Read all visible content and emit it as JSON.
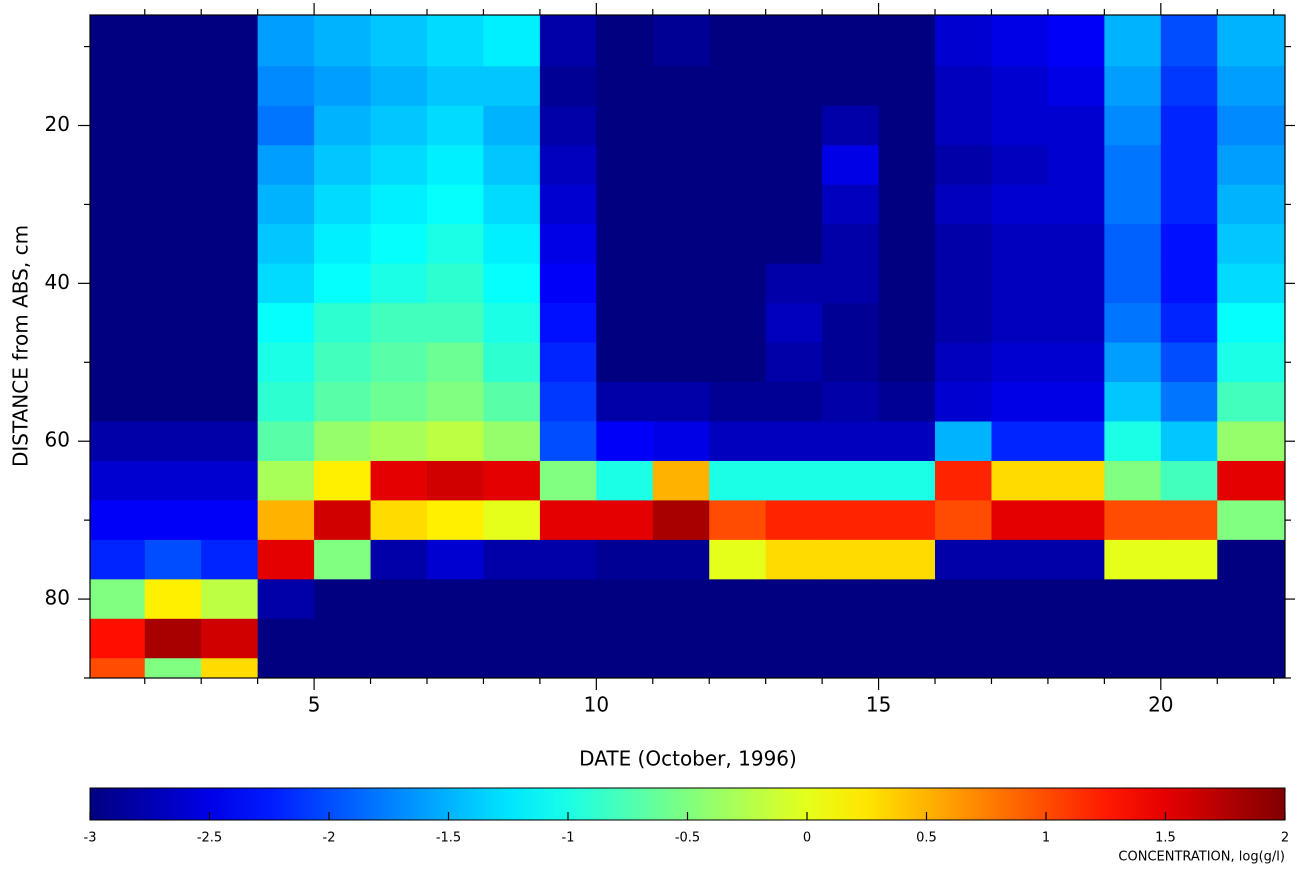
{
  "chart_data": {
    "type": "heatmap",
    "xlabel": "DATE (October, 1996)",
    "ylabel": "DISTANCE from ABS, cm",
    "colorbar_label": "CONCENTRATION, log(g/l)",
    "colormap": "jet",
    "xlim": [
      1.03,
      22.2
    ],
    "ylim": [
      6,
      90
    ],
    "y_inverted": true,
    "xticks": [
      5,
      10,
      15,
      20
    ],
    "x_minor_ticks": [
      2,
      3,
      4,
      6,
      7,
      8,
      9,
      11,
      12,
      13,
      14,
      16,
      17,
      18,
      19,
      21,
      22
    ],
    "yticks": [
      20,
      40,
      60,
      80
    ],
    "y_minor_ticks": [
      10,
      30,
      50,
      70,
      90
    ],
    "clim": [
      -3,
      2
    ],
    "cticks": [
      -3,
      -2.5,
      -2,
      -1.5,
      -1,
      -0.5,
      0,
      0.5,
      1,
      1.5,
      2
    ],
    "x": [
      1.5,
      2.5,
      3.5,
      4.5,
      5.5,
      6.5,
      7.5,
      8.5,
      9.5,
      10.5,
      11.5,
      12.5,
      13.5,
      14.5,
      15.5,
      16.5,
      17.5,
      18.5,
      19.5,
      20.5,
      21.5
    ],
    "y": [
      10,
      15,
      20,
      25,
      30,
      35,
      40,
      45,
      50,
      55,
      60,
      65,
      70,
      75,
      80,
      85,
      90
    ],
    "z": [
      [
        -3,
        -3,
        -3,
        -3,
        -3,
        -3,
        -3,
        -3,
        -3,
        -3,
        -2.8,
        -2.6,
        -2.4,
        -2.2,
        -0.5,
        1.3,
        1.0
      ],
      [
        -3,
        -3,
        -3,
        -3,
        -3,
        -3,
        -3,
        -3,
        -3,
        -3,
        -2.8,
        -2.6,
        -2.4,
        -2,
        0.2,
        1.8,
        -0.5
      ],
      [
        -3,
        -3,
        -3,
        -3,
        -3,
        -3,
        -3,
        -3,
        -3,
        -3,
        -2.8,
        -2.6,
        -2.4,
        -2.2,
        -0.2,
        1.6,
        0.3
      ],
      [
        -1.6,
        -1.7,
        -1.8,
        -1.6,
        -1.5,
        -1.4,
        -1.3,
        -1.1,
        -1,
        -0.9,
        -0.7,
        -0.3,
        0.5,
        1.5,
        -2.8,
        -3,
        -3
      ],
      [
        -1.5,
        -1.6,
        -1.5,
        -1.4,
        -1.3,
        -1.2,
        -1.1,
        -0.9,
        -0.8,
        -0.7,
        -0.4,
        0.2,
        1.6,
        -0.5,
        -3,
        -3,
        -3
      ],
      [
        -1.4,
        -1.5,
        -1.4,
        -1.3,
        -1.2,
        -1.1,
        -1,
        -0.8,
        -0.7,
        -0.6,
        -0.3,
        1.5,
        0.3,
        -2.8,
        -3,
        -3,
        -3
      ],
      [
        -1.3,
        -1.4,
        -1.3,
        -1.2,
        -1.1,
        -1,
        -0.9,
        -0.8,
        -0.6,
        -0.5,
        -0.2,
        1.6,
        0.2,
        -2.6,
        -3,
        -3,
        -3
      ],
      [
        -1.2,
        -1.4,
        -1.5,
        -1.4,
        -1.3,
        -1.2,
        -1.1,
        -1,
        -0.9,
        -0.7,
        -0.4,
        1.5,
        0,
        -2.8,
        -3,
        -3,
        -3
      ],
      [
        -2.8,
        -2.9,
        -2.8,
        -2.7,
        -2.6,
        -2.5,
        -2.4,
        -2.3,
        -2.2,
        -2.1,
        -2,
        -0.5,
        1.5,
        -2.8,
        -3,
        -3,
        -3
      ],
      [
        -3,
        -3,
        -3,
        -3,
        -3,
        -3,
        -3,
        -3,
        -3,
        -2.8,
        -2.4,
        -1,
        1.5,
        -2.9,
        -3,
        -3,
        -3
      ],
      [
        -2.9,
        -3,
        -3,
        -3,
        -3,
        -3,
        -3,
        -3,
        -3,
        -2.8,
        -2.5,
        0.5,
        1.8,
        -2.9,
        -3,
        -3,
        -3
      ],
      [
        -3,
        -3,
        -3,
        -3,
        -3,
        -3,
        -3,
        -3,
        -3,
        -2.9,
        -2.7,
        -1,
        1,
        0,
        -3,
        -3,
        -3
      ],
      [
        -3,
        -3,
        -3,
        -3,
        -3,
        -3,
        -2.8,
        -2.7,
        -2.8,
        -2.9,
        -2.7,
        -1,
        1.2,
        0.3,
        -3,
        -3,
        -3
      ],
      [
        -3,
        -3,
        -2.8,
        -2.5,
        -2.7,
        -2.8,
        -2.8,
        -2.9,
        -2.9,
        -2.8,
        -2.7,
        -1,
        1.2,
        0.3,
        -3,
        -3,
        -3
      ],
      [
        -3,
        -3,
        -3,
        -3,
        -3,
        -3,
        -3,
        -3,
        -3,
        -2.9,
        -2.7,
        -1,
        1.2,
        0.3,
        -3,
        -3,
        -3
      ],
      [
        -2.6,
        -2.7,
        -2.7,
        -2.8,
        -2.7,
        -2.8,
        -2.8,
        -2.8,
        -2.7,
        -2.6,
        -1.5,
        1.2,
        1,
        -2.8,
        -3,
        -3,
        -3
      ],
      [
        -2.5,
        -2.6,
        -2.6,
        -2.7,
        -2.6,
        -2.7,
        -2.7,
        -2.7,
        -2.6,
        -2.5,
        -2.2,
        0.3,
        1.5,
        -2.8,
        -3,
        -3,
        -3
      ],
      [
        -2.4,
        -2.5,
        -2.6,
        -2.6,
        -2.6,
        -2.7,
        -2.7,
        -2.7,
        -2.6,
        -2.5,
        -2.2,
        0.3,
        1.5,
        -2.8,
        -3,
        -3,
        -3
      ],
      [
        -1.5,
        -1.6,
        -1.7,
        -1.8,
        -1.8,
        -1.9,
        -1.9,
        -1.8,
        -1.6,
        -1.4,
        -1,
        -0.5,
        1,
        0,
        -3,
        -3,
        -3
      ],
      [
        -2,
        -2.1,
        -2.2,
        -2.2,
        -2.2,
        -2.3,
        -2.3,
        -2.2,
        -2,
        -1.8,
        -1.4,
        -0.8,
        1,
        0,
        -3,
        -3,
        -3
      ],
      [
        -1.5,
        -1.6,
        -1.7,
        -1.6,
        -1.5,
        -1.4,
        -1.3,
        -1.1,
        -1,
        -0.8,
        -0.4,
        1.5,
        -0.5,
        -3,
        -3,
        -3,
        -3
      ]
    ]
  }
}
